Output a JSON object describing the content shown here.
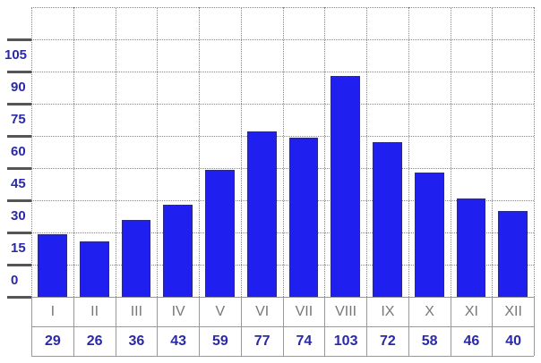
{
  "chart_data": {
    "type": "bar",
    "title": "",
    "xlabel": "",
    "ylabel": "",
    "categories": [
      "I",
      "II",
      "III",
      "IV",
      "V",
      "VI",
      "VII",
      "VIII",
      "IX",
      "X",
      "XI",
      "XII"
    ],
    "values": [
      29,
      26,
      36,
      43,
      59,
      77,
      74,
      103,
      72,
      58,
      46,
      40
    ],
    "yticks": [
      0,
      15,
      30,
      45,
      60,
      75,
      90,
      105
    ],
    "ylim": [
      0,
      135
    ],
    "grid": true,
    "legend": null,
    "bar_color": "#1f1ff0",
    "data_table": true
  }
}
